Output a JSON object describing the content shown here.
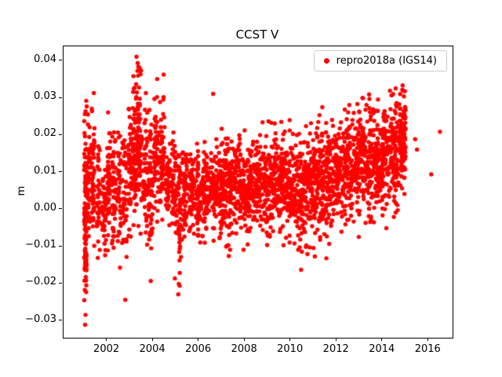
{
  "figure": {
    "background": "#ffffff"
  },
  "chart_data": {
    "type": "scatter",
    "title": "CCST V",
    "xlabel": "",
    "ylabel": "m",
    "xlim": [
      2000.1,
      2017.05
    ],
    "ylim": [
      -0.0345,
      0.044
    ],
    "xticks": [
      2002,
      2004,
      2006,
      2008,
      2010,
      2012,
      2014,
      2016
    ],
    "yticks": [
      -0.03,
      -0.02,
      -0.01,
      0.0,
      0.01,
      0.02,
      0.03,
      0.04
    ],
    "grid": false,
    "legend": {
      "position": "upper right",
      "entries": [
        {
          "label": "repro2018a (IGS14)",
          "color": "#ff0000",
          "marker": "circle"
        }
      ]
    },
    "marker": {
      "color": "#ff0000",
      "radius_px": 2.7
    },
    "seed": 42,
    "clusters": [
      [
        2001.0,
        2001.12,
        0.003,
        0.012,
        80
      ],
      [
        2001.02,
        2001.1,
        -0.01,
        0.008,
        40
      ],
      [
        2001.15,
        2001.28,
        0.007,
        0.008,
        45
      ],
      [
        2001.32,
        2001.45,
        0.009,
        0.008,
        55
      ],
      [
        2001.55,
        2001.7,
        0.004,
        0.007,
        40
      ],
      [
        2001.78,
        2001.95,
        0.001,
        0.007,
        45
      ],
      [
        2002.0,
        2002.15,
        0.008,
        0.008,
        55
      ],
      [
        2002.2,
        2002.38,
        0.006,
        0.008,
        50
      ],
      [
        2002.45,
        2002.6,
        0.004,
        0.007,
        40
      ],
      [
        2002.65,
        2002.85,
        0.003,
        0.008,
        45
      ],
      [
        2002.92,
        2003.06,
        0.01,
        0.008,
        50
      ],
      [
        2003.1,
        2003.3,
        0.016,
        0.009,
        75
      ],
      [
        2003.32,
        2003.5,
        0.018,
        0.009,
        75
      ],
      [
        2003.55,
        2003.75,
        0.009,
        0.008,
        55
      ],
      [
        2003.8,
        2004.0,
        0.006,
        0.009,
        55
      ],
      [
        2004.05,
        2004.25,
        0.013,
        0.008,
        60
      ],
      [
        2004.28,
        2004.5,
        0.014,
        0.008,
        60
      ],
      [
        2004.55,
        2004.75,
        0.008,
        0.006,
        50
      ],
      [
        2004.8,
        2005.0,
        0.005,
        0.006,
        50
      ],
      [
        2005.02,
        2005.22,
        0.002,
        0.008,
        55
      ],
      [
        2005.25,
        2005.5,
        0.004,
        0.006,
        60
      ],
      [
        2005.55,
        2005.8,
        0.005,
        0.006,
        60
      ],
      [
        2005.85,
        2006.1,
        0.004,
        0.006,
        65
      ],
      [
        2006.15,
        2006.45,
        0.005,
        0.006,
        75
      ],
      [
        2006.5,
        2006.8,
        0.006,
        0.006,
        75
      ],
      [
        2006.85,
        2007.1,
        0.005,
        0.006,
        70
      ],
      [
        2007.12,
        2007.5,
        0.006,
        0.006,
        95
      ],
      [
        2007.52,
        2007.9,
        0.007,
        0.006,
        95
      ],
      [
        2007.92,
        2008.3,
        0.006,
        0.006,
        95
      ],
      [
        2008.32,
        2008.7,
        0.007,
        0.006,
        95
      ],
      [
        2008.72,
        2009.1,
        0.007,
        0.006,
        95
      ],
      [
        2009.12,
        2009.5,
        0.008,
        0.006,
        95
      ],
      [
        2009.52,
        2009.9,
        0.007,
        0.006,
        95
      ],
      [
        2009.92,
        2010.3,
        0.006,
        0.007,
        95
      ],
      [
        2010.32,
        2010.7,
        0.005,
        0.007,
        95
      ],
      [
        2010.72,
        2011.1,
        0.007,
        0.007,
        95
      ],
      [
        2011.12,
        2011.5,
        0.008,
        0.007,
        95
      ],
      [
        2011.52,
        2011.9,
        0.009,
        0.007,
        95
      ],
      [
        2011.92,
        2012.3,
        0.01,
        0.007,
        95
      ],
      [
        2012.32,
        2012.7,
        0.011,
        0.007,
        95
      ],
      [
        2012.72,
        2013.1,
        0.012,
        0.007,
        95
      ],
      [
        2013.12,
        2013.5,
        0.013,
        0.007,
        95
      ],
      [
        2013.52,
        2013.9,
        0.013,
        0.007,
        95
      ],
      [
        2013.92,
        2014.3,
        0.014,
        0.007,
        95
      ],
      [
        2014.32,
        2014.7,
        0.016,
        0.007,
        100
      ],
      [
        2014.72,
        2015.0,
        0.019,
        0.006,
        110
      ]
    ],
    "outliers": [
      [
        2001.04,
        -0.031
      ],
      [
        2001.06,
        0.0265
      ],
      [
        2001.33,
        0.0272
      ],
      [
        2002.04,
        0.0262
      ],
      [
        2002.79,
        -0.0243
      ],
      [
        2003.28,
        0.0412
      ],
      [
        2003.33,
        0.0395
      ],
      [
        2003.36,
        0.0385
      ],
      [
        2003.9,
        -0.0192
      ],
      [
        2004.18,
        0.0352
      ],
      [
        2004.95,
        -0.0185
      ],
      [
        2005.1,
        -0.0228
      ],
      [
        2005.16,
        -0.0205
      ],
      [
        2006.62,
        0.0312
      ],
      [
        2007.3,
        -0.0125
      ],
      [
        2009.3,
        0.0232
      ],
      [
        2010.45,
        -0.0162
      ],
      [
        2011.55,
        -0.0131
      ],
      [
        2012.5,
        0.0262
      ],
      [
        2013.3,
        0.0282
      ],
      [
        2014.88,
        0.0321
      ],
      [
        2014.93,
        0.0305
      ],
      [
        2015.42,
        0.019
      ],
      [
        2015.5,
        0.0162
      ],
      [
        2016.12,
        0.0095
      ],
      [
        2016.5,
        0.021
      ]
    ]
  }
}
